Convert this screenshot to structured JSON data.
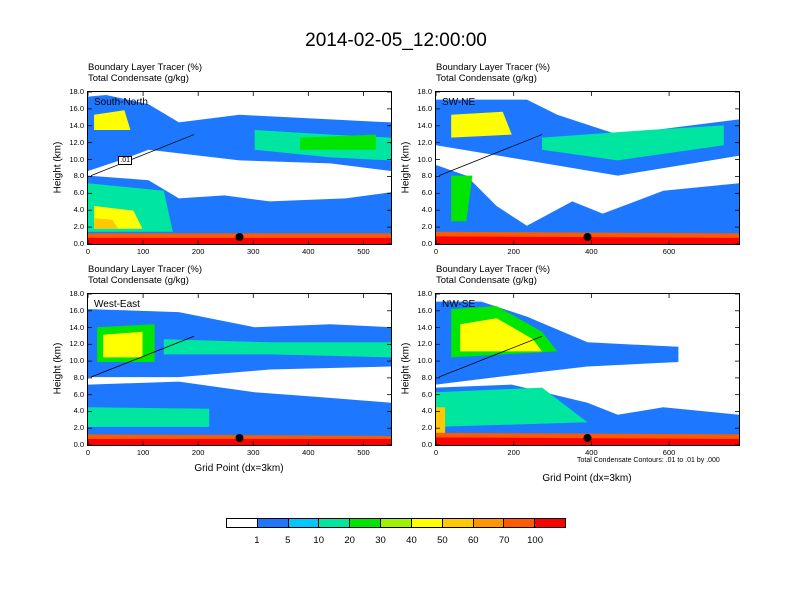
{
  "main_title": "2014-02-05_12:00:00",
  "panel_title_line1": "Boundary Layer Tracer    (%)",
  "panel_title_line2": "Total Condensate    (g/kg)",
  "ylabel": "Height (km)",
  "xlabel": "Grid Point (dx=3km)",
  "contour_note": "Total Condensate Contours: .01 to .01 by .000",
  "colorbar": {
    "colors": [
      "#ffffff",
      "#1e78ff",
      "#00c8ff",
      "#00e6a0",
      "#00e600",
      "#a0f000",
      "#ffff00",
      "#ffc800",
      "#ff9600",
      "#ff5a00",
      "#ff0000"
    ],
    "labels": [
      "1",
      "5",
      "10",
      "20",
      "30",
      "40",
      "50",
      "60",
      "70",
      "100"
    ]
  },
  "chart_data": [
    {
      "type": "heatmap",
      "label": "South-North",
      "ylabel": "Height (km)",
      "x_ticks": [
        "0",
        "100",
        "200",
        "300",
        "400",
        "500"
      ],
      "y_ticks": [
        "0.0",
        "2.0",
        "4.0",
        "6.0",
        "8.0",
        "10.0",
        "12.0",
        "14.0",
        "16.0",
        "18.0"
      ],
      "xlim": [
        0,
        550
      ],
      "ylim": [
        0,
        18
      ],
      "contour_label": ".01",
      "marker_x": 275
    },
    {
      "type": "heatmap",
      "label": "SW-NE",
      "ylabel": "Height (km)",
      "x_ticks": [
        "0",
        "200",
        "400",
        "600"
      ],
      "y_ticks": [
        "0.0",
        "2.0",
        "4.0",
        "6.0",
        "8.0",
        "10.0",
        "12.0",
        "14.0",
        "16.0",
        "18.0"
      ],
      "xlim": [
        0,
        780
      ],
      "ylim": [
        0,
        18
      ],
      "marker_x": 390
    },
    {
      "type": "heatmap",
      "label": "West-East",
      "ylabel": "Height (km)",
      "x_ticks": [
        "0",
        "100",
        "200",
        "300",
        "400",
        "500"
      ],
      "y_ticks": [
        "0.0",
        "2.0",
        "4.0",
        "6.0",
        "8.0",
        "10.0",
        "12.0",
        "14.0",
        "16.0",
        "18.0"
      ],
      "xlim": [
        0,
        550
      ],
      "ylim": [
        0,
        18
      ],
      "marker_x": 275
    },
    {
      "type": "heatmap",
      "label": "NW-SE",
      "ylabel": "Height (km)",
      "x_ticks": [
        "0",
        "200",
        "400",
        "600"
      ],
      "y_ticks": [
        "0.0",
        "2.0",
        "4.0",
        "6.0",
        "8.0",
        "10.0",
        "12.0",
        "14.0",
        "16.0",
        "18.0"
      ],
      "xlim": [
        0,
        780
      ],
      "ylim": [
        0,
        18
      ],
      "marker_x": 390
    }
  ]
}
